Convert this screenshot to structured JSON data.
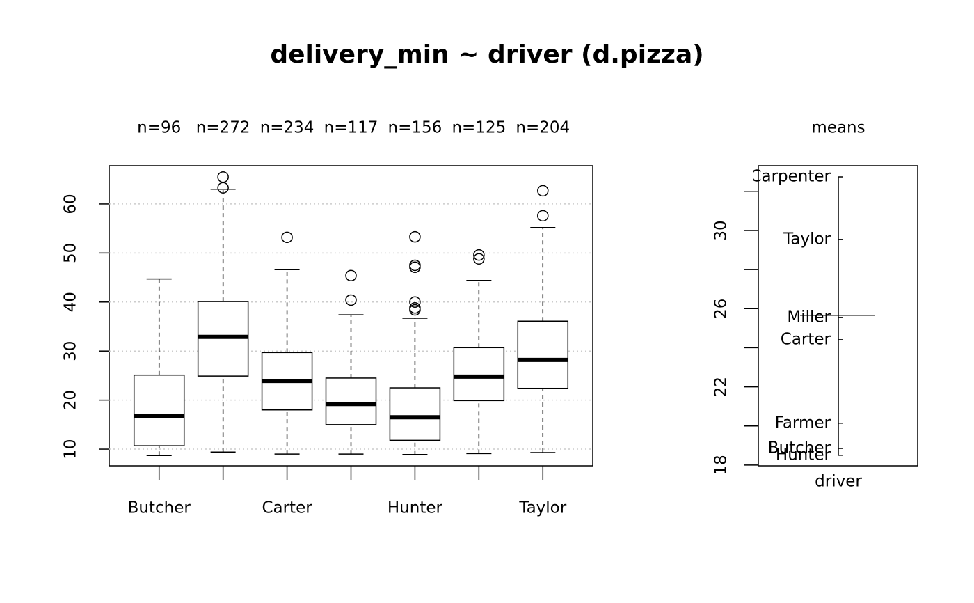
{
  "chart_data": [
    {
      "type": "boxplot",
      "title": "delivery_min ~ driver (d.pizza)",
      "categories": [
        "Butcher",
        null,
        "Carter",
        null,
        "Hunter",
        null,
        "Taylor"
      ],
      "n_labels": [
        "n=96",
        "n=272",
        "n=234",
        "n=117",
        "n=156",
        "n=125",
        "n=204"
      ],
      "boxes": [
        {
          "whislo": 8.7,
          "q1": 10.7,
          "med": 16.8,
          "q3": 25.1,
          "whishi": 44.7,
          "outliers": []
        },
        {
          "whislo": 9.4,
          "q1": 24.9,
          "med": 32.9,
          "q3": 40.1,
          "whishi": 63.0,
          "outliers": [
            65.5,
            63.3
          ]
        },
        {
          "whislo": 9.0,
          "q1": 18.0,
          "med": 23.9,
          "q3": 29.7,
          "whishi": 46.6,
          "outliers": [
            53.2
          ]
        },
        {
          "whislo": 9.0,
          "q1": 15.0,
          "med": 19.2,
          "q3": 24.5,
          "whishi": 37.4,
          "outliers": [
            45.4,
            40.4
          ]
        },
        {
          "whislo": 8.9,
          "q1": 11.8,
          "med": 16.5,
          "q3": 22.5,
          "whishi": 36.7,
          "outliers": [
            53.3,
            47.5,
            47.1,
            40.0,
            38.8,
            38.4
          ]
        },
        {
          "whislo": 9.1,
          "q1": 19.9,
          "med": 24.8,
          "q3": 30.7,
          "whishi": 44.4,
          "outliers": [
            49.6,
            48.8
          ]
        },
        {
          "whislo": 9.3,
          "q1": 22.4,
          "med": 28.2,
          "q3": 36.1,
          "whishi": 55.2,
          "outliers": [
            62.7,
            57.6
          ]
        }
      ],
      "color": "#000000",
      "ylim": [
        6.6,
        67.8
      ],
      "yticks": [
        10,
        20,
        30,
        40,
        50,
        60
      ],
      "grid": true
    },
    {
      "type": "means",
      "title": "means",
      "xlabel": "driver",
      "labels": [
        "Carpenter",
        "Taylor",
        "Miller",
        "Carter",
        "Farmer",
        "Butcher",
        "Hunter"
      ],
      "values": [
        32.74,
        29.54,
        25.55,
        24.41,
        20.14,
        18.85,
        18.5
      ],
      "overall_mean": 25.66,
      "ylim": [
        17.96,
        33.31
      ],
      "yticks": [
        18,
        22,
        26,
        30
      ],
      "yminor_ticks": [
        20,
        24,
        28,
        32
      ]
    }
  ]
}
